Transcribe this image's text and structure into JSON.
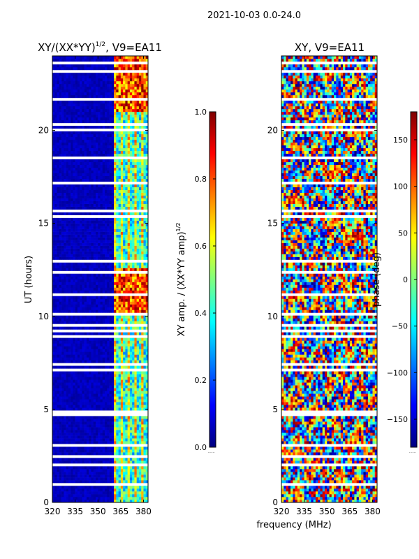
{
  "figure": {
    "suptitle": "2021-10-03 0.0-24.0",
    "shared_xlabel": "frequency (MHz)"
  },
  "colors": {
    "jet": [
      "#00007f",
      "#0000ff",
      "#007fff",
      "#00ffff",
      "#7fff7f",
      "#ffff00",
      "#ff7f00",
      "#ff0000",
      "#7f0000"
    ],
    "flag": "#ffffff",
    "axis": "#000000"
  },
  "chart_data": [
    {
      "type": "heatmap",
      "title_main": "XY/(XX*YY)",
      "title_sup": "1/2",
      "title_tail": ", V9=EA11",
      "xlabel": "",
      "ylabel": "UT (hours)",
      "xlim": [
        320,
        383
      ],
      "ylim": [
        0,
        24
      ],
      "xticks": [
        320,
        335,
        350,
        365,
        380
      ],
      "yticks": [
        0,
        5,
        10,
        15,
        20
      ],
      "notes": "amplitude mostly low (dark blue) below ~360 MHz; higher values (cyan/yellow/red striping) in 360-383 MHz band; strongest near 10.2-12.6 h and 21-24 h; many white flagged rows",
      "high_bands_hours": [
        [
          10.2,
          12.6
        ],
        [
          21.0,
          24.0
        ]
      ],
      "signal_freq_start_mhz": 360,
      "colorbar": {
        "label_main": "XY amp. / (XX*YY amp)",
        "label_sup": "1/2",
        "range": [
          0.0,
          1.0
        ],
        "ticks": [
          "0.0",
          "0.2",
          "0.4",
          "0.6",
          "0.8",
          "1.0"
        ],
        "tick_values": [
          0.0,
          0.2,
          0.4,
          0.6,
          0.8,
          1.0
        ],
        "extra_label": "......"
      }
    },
    {
      "type": "heatmap",
      "title": "XY, V9=EA11",
      "xlabel": "frequency (MHz)",
      "ylabel": "",
      "xlim": [
        320,
        383
      ],
      "ylim": [
        0,
        24
      ],
      "xticks": [
        320,
        335,
        350,
        365,
        380
      ],
      "yticks": [
        0,
        5,
        10,
        15,
        20
      ],
      "notes": "phase spans full -180..180 range; noisy multicolor texture with horizontal banding, many white flagged rows",
      "colorbar": {
        "label": "phase (deg)",
        "range": [
          -180,
          180
        ],
        "ticks": [
          "−150",
          "−100",
          "−50",
          "0",
          "50",
          "100",
          "150"
        ],
        "tick_values": [
          -150,
          -100,
          -50,
          0,
          50,
          100,
          150
        ],
        "extra_label": "......"
      }
    }
  ]
}
